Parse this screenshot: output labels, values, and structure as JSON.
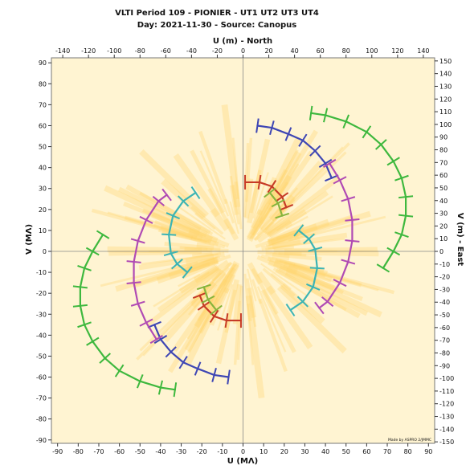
{
  "chart_data": {
    "type": "scatter",
    "title": "VLTI Period 109 - PIONIER - UT1 UT2 UT3 UT4",
    "subtitle": "Day: 2021-11-30 - Source: Canopus",
    "xlabel": "U (MΛ)",
    "ylabel": "V (MΛ)",
    "top_axis_label": "U (m) - North",
    "right_axis_label": "V (m) - East",
    "xlim": [
      -93,
      93
    ],
    "ylim": [
      -92,
      92
    ],
    "x_ticks": [
      -90,
      -80,
      -70,
      -60,
      -50,
      -40,
      -30,
      -20,
      -10,
      0,
      10,
      20,
      30,
      40,
      50,
      60,
      70,
      80,
      90
    ],
    "y_ticks": [
      -90,
      -80,
      -70,
      -60,
      -50,
      -40,
      -30,
      -20,
      -10,
      0,
      10,
      20,
      30,
      40,
      50,
      60,
      70,
      80,
      90
    ],
    "top_ticks_m": [
      -140,
      -120,
      -100,
      -80,
      -60,
      -40,
      -20,
      0,
      20,
      40,
      60,
      80,
      100,
      120,
      140
    ],
    "right_ticks_m": [
      -150,
      -140,
      -130,
      -120,
      -110,
      -100,
      -90,
      -80,
      -70,
      -60,
      -50,
      -40,
      -30,
      -20,
      -10,
      0,
      10,
      20,
      30,
      40,
      50,
      60,
      70,
      80,
      90,
      100,
      110,
      120,
      130,
      140,
      150
    ],
    "meters_per_unit_x": 1.6,
    "meters_per_unit_y": 1.65,
    "grid": false,
    "credit": "Made by ASPRO 2/JMMC",
    "colors": {
      "background": "#fff4d2",
      "rays": "#ffd36a",
      "axes_cross": "#888888"
    },
    "series": [
      {
        "color": "#3eb83e",
        "points": [
          [
            33,
            66
          ],
          [
            40,
            65
          ],
          [
            50,
            62
          ],
          [
            60,
            57
          ],
          [
            67,
            51
          ],
          [
            73,
            43
          ],
          [
            77,
            35
          ],
          [
            79,
            26
          ],
          [
            79,
            17
          ],
          [
            77,
            8
          ],
          [
            73,
            0
          ],
          [
            68,
            -8
          ]
        ]
      },
      {
        "color": "#3e46b4",
        "points": [
          [
            7,
            60
          ],
          [
            14,
            59
          ],
          [
            22,
            56
          ],
          [
            29,
            53
          ],
          [
            35,
            48
          ],
          [
            40,
            42
          ],
          [
            43,
            35
          ]
        ]
      },
      {
        "color": "#b04ab4",
        "points": [
          [
            42,
            42
          ],
          [
            47,
            34
          ],
          [
            51,
            25
          ],
          [
            53,
            15
          ],
          [
            53,
            5
          ],
          [
            51,
            -5
          ],
          [
            47,
            -15
          ],
          [
            41,
            -24
          ],
          [
            37,
            -27
          ]
        ]
      },
      {
        "color": "#c63a26",
        "points": [
          [
            1,
            33
          ],
          [
            8,
            33
          ],
          [
            14,
            31
          ],
          [
            19,
            26
          ],
          [
            21,
            21
          ]
        ]
      },
      {
        "color": "#86b43c",
        "points": [
          [
            13,
            28
          ],
          [
            17,
            23
          ],
          [
            19,
            17
          ]
        ]
      },
      {
        "color": "#3cb4b4",
        "points": [
          [
            27,
            10
          ],
          [
            32,
            6
          ],
          [
            35,
            1
          ],
          [
            36,
            -8
          ],
          [
            34,
            -17
          ],
          [
            29,
            -24
          ],
          [
            23,
            -28
          ]
        ]
      },
      {
        "color": "#3eb83e",
        "points": [
          [
            -33,
            -66
          ],
          [
            -40,
            -65
          ],
          [
            -50,
            -62
          ],
          [
            -60,
            -57
          ],
          [
            -67,
            -51
          ],
          [
            -73,
            -43
          ],
          [
            -77,
            -35
          ],
          [
            -79,
            -26
          ],
          [
            -79,
            -17
          ],
          [
            -77,
            -8
          ],
          [
            -73,
            0
          ],
          [
            -68,
            8
          ]
        ]
      },
      {
        "color": "#3e46b4",
        "points": [
          [
            -7,
            -60
          ],
          [
            -14,
            -59
          ],
          [
            -22,
            -56
          ],
          [
            -29,
            -53
          ],
          [
            -35,
            -48
          ],
          [
            -40,
            -42
          ],
          [
            -43,
            -35
          ]
        ]
      },
      {
        "color": "#b04ab4",
        "points": [
          [
            -42,
            -42
          ],
          [
            -47,
            -34
          ],
          [
            -51,
            -25
          ],
          [
            -53,
            -15
          ],
          [
            -53,
            -5
          ],
          [
            -51,
            5
          ],
          [
            -47,
            15
          ],
          [
            -41,
            24
          ],
          [
            -37,
            27
          ]
        ]
      },
      {
        "color": "#c63a26",
        "points": [
          [
            -1,
            -33
          ],
          [
            -8,
            -33
          ],
          [
            -14,
            -31
          ],
          [
            -19,
            -26
          ],
          [
            -21,
            -21
          ]
        ]
      },
      {
        "color": "#86b43c",
        "points": [
          [
            -13,
            -28
          ],
          [
            -17,
            -23
          ],
          [
            -19,
            -17
          ]
        ]
      },
      {
        "color": "#3cb4b4",
        "points": [
          [
            -27,
            -10
          ],
          [
            -32,
            -6
          ],
          [
            -35,
            -1
          ],
          [
            -36,
            8
          ],
          [
            -34,
            17
          ],
          [
            -29,
            24
          ],
          [
            -23,
            28
          ]
        ]
      }
    ]
  }
}
